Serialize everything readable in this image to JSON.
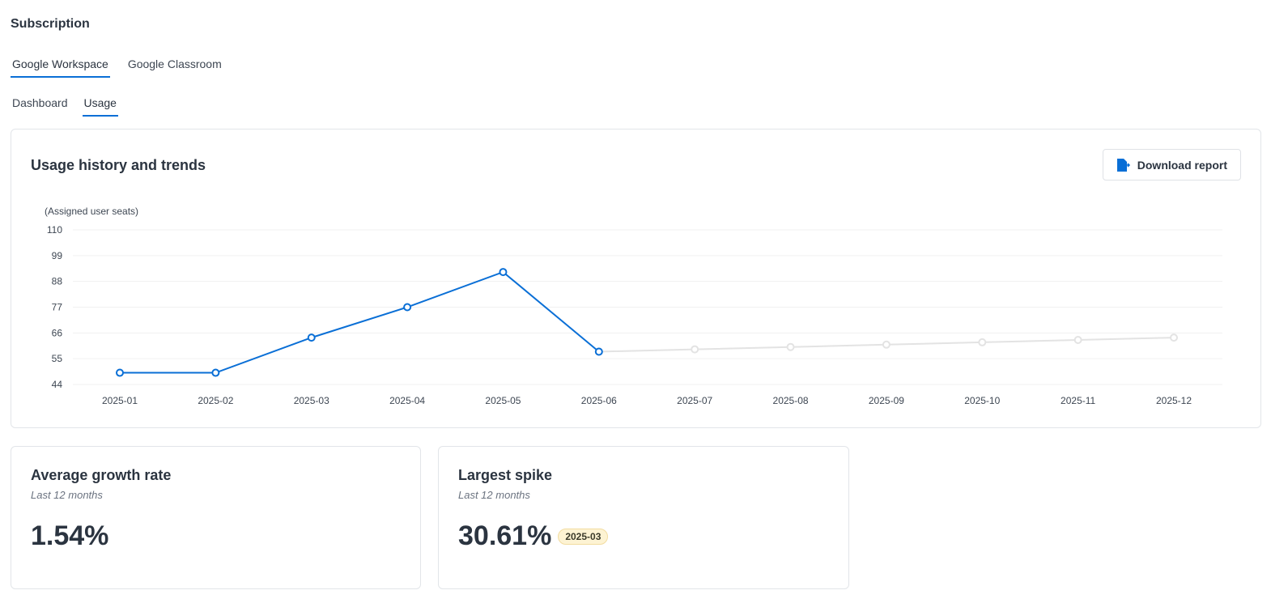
{
  "page_title": "Subscription",
  "product_tabs": [
    {
      "label": "Google Workspace",
      "active": true
    },
    {
      "label": "Google Classroom",
      "active": false
    }
  ],
  "view_tabs": [
    {
      "label": "Dashboard",
      "active": false
    },
    {
      "label": "Usage",
      "active": true
    }
  ],
  "usage_card": {
    "title": "Usage history and trends",
    "download_label": "Download report",
    "download_icon": "file-export-icon"
  },
  "chart_data": {
    "type": "line",
    "ylabel": "(Assigned user seats)",
    "ylim": [
      44,
      110
    ],
    "yticks": [
      110,
      99,
      88,
      77,
      66,
      55,
      44
    ],
    "categories": [
      "2025-01",
      "2025-02",
      "2025-03",
      "2025-04",
      "2025-05",
      "2025-06",
      "2025-07",
      "2025-08",
      "2025-09",
      "2025-10",
      "2025-11",
      "2025-12"
    ],
    "series": [
      {
        "kind": "actual",
        "color": "#0a6fd6",
        "values": [
          49,
          49,
          64,
          77,
          92,
          58,
          null,
          null,
          null,
          null,
          null,
          null
        ]
      },
      {
        "kind": "projected",
        "color": "#e3e3e3",
        "values": [
          null,
          null,
          null,
          null,
          null,
          58,
          59,
          60,
          61,
          62,
          63,
          64
        ]
      }
    ],
    "grid": true
  },
  "stats": [
    {
      "title": "Average growth rate",
      "subtitle": "Last 12 months",
      "value": "1.54%"
    },
    {
      "title": "Largest spike",
      "subtitle": "Last 12 months",
      "value": "30.61%",
      "badge": "2025-03"
    }
  ]
}
